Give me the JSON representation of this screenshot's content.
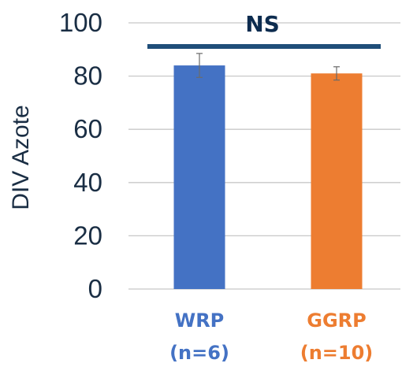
{
  "chart_data": {
    "type": "bar",
    "ylabel": "DIV Azote",
    "ylim": [
      0,
      100
    ],
    "yticks": [
      0,
      20,
      40,
      60,
      80,
      100
    ],
    "grid": true,
    "categories": [
      {
        "name": "WRP",
        "n": "(n=6)",
        "color": "#4472c4",
        "label_color": "#4472c4"
      },
      {
        "name": "GGRP",
        "n": "(n=10)",
        "color": "#ed7d31",
        "label_color": "#ed7d31"
      }
    ],
    "values": [
      84,
      81
    ],
    "errors": [
      4.5,
      2.5
    ],
    "significance": {
      "label": "NS",
      "color": "#1f4e79"
    }
  }
}
